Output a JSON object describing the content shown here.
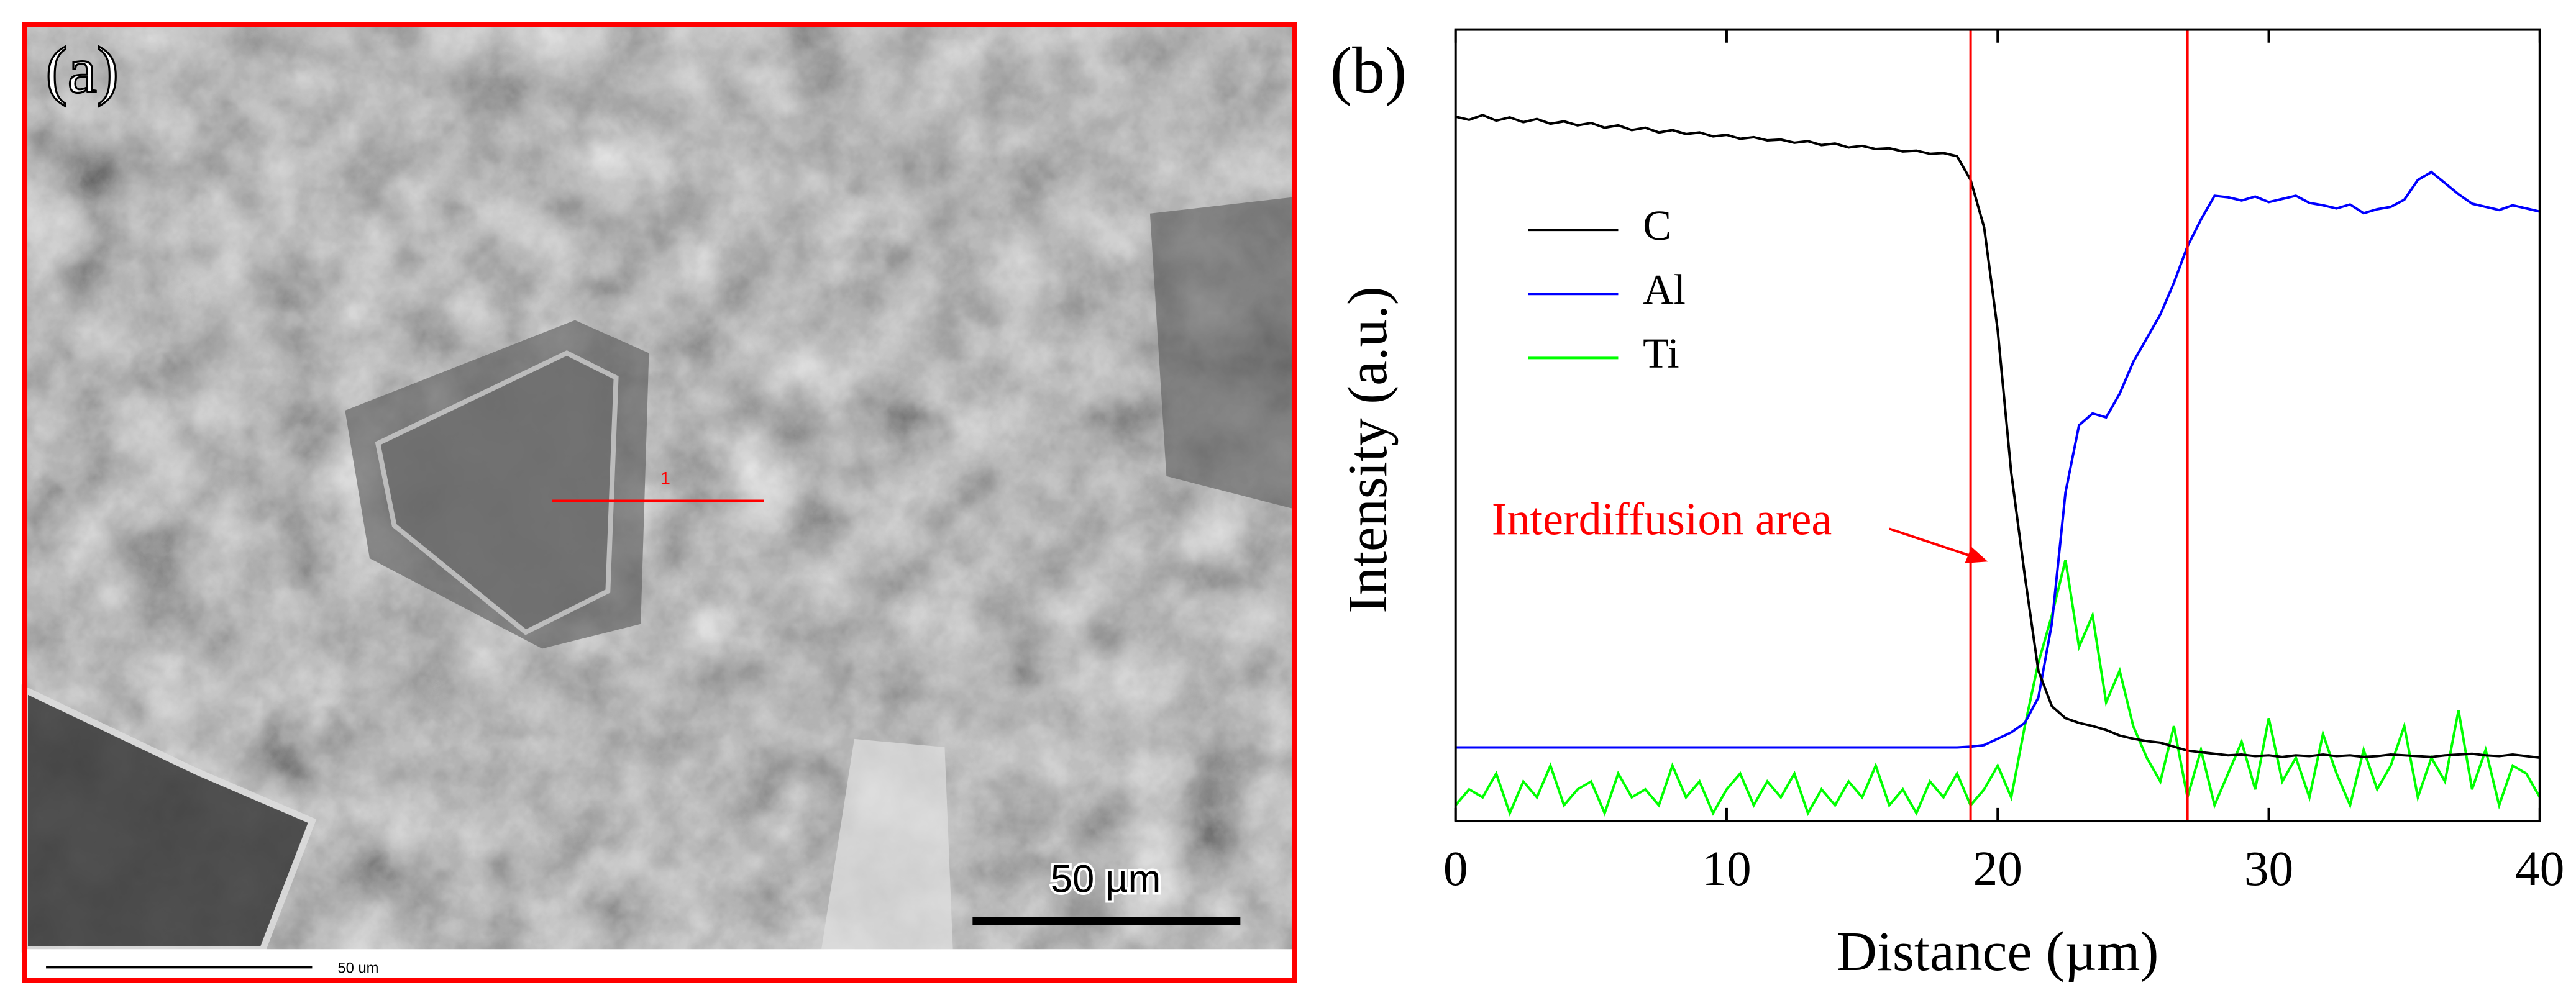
{
  "image_panel": {
    "label": "(a)",
    "scale_bar": "50 µm",
    "footer_scale": "50 um",
    "line_marker": "1"
  },
  "chart_data": {
    "type": "line",
    "panel_label": "(b)",
    "x_label": "Distance (µm)",
    "y_label": "Intensity (a.u.)",
    "annotation": "Interdiffusion area",
    "annotation_color": "#ff0000",
    "vlines": [
      19,
      27
    ],
    "vline_color": "#ff0000",
    "xlim": [
      0,
      40
    ],
    "xticks": [
      0,
      10,
      20,
      30,
      40
    ],
    "ylim": [
      0,
      100
    ],
    "legend": "upper left",
    "x": [
      0,
      0.5,
      1,
      1.5,
      2,
      2.5,
      3,
      3.5,
      4,
      4.5,
      5,
      5.5,
      6,
      6.5,
      7,
      7.5,
      8,
      8.5,
      9,
      9.5,
      10,
      10.5,
      11,
      11.5,
      12,
      12.5,
      13,
      13.5,
      14,
      14.5,
      15,
      15.5,
      16,
      16.5,
      17,
      17.5,
      18,
      18.5,
      19,
      19.5,
      20,
      20.5,
      21,
      21.5,
      22,
      22.5,
      23,
      23.5,
      24,
      24.5,
      25,
      25.5,
      26,
      26.5,
      27,
      27.5,
      28,
      28.5,
      29,
      29.5,
      30,
      30.5,
      31,
      31.5,
      32,
      32.5,
      33,
      33.5,
      34,
      34.5,
      35,
      35.5,
      36,
      36.5,
      37,
      37.5,
      38,
      38.5,
      39,
      39.5,
      40
    ],
    "series": [
      {
        "name": "C",
        "color": "#000000",
        "values": [
          89,
          88.6,
          89.2,
          88.5,
          88.9,
          88.3,
          88.7,
          88.1,
          88.4,
          87.9,
          88.2,
          87.6,
          87.9,
          87.3,
          87.6,
          87,
          87.3,
          86.8,
          87,
          86.5,
          86.7,
          86.2,
          86.4,
          86,
          86.1,
          85.7,
          85.9,
          85.4,
          85.6,
          85.1,
          85.3,
          84.9,
          85,
          84.6,
          84.7,
          84.3,
          84.4,
          84,
          81,
          75,
          62,
          44,
          31,
          19,
          14.5,
          13,
          12.4,
          12,
          11.5,
          10.8,
          10.4,
          10.1,
          9.9,
          9.4,
          8.9,
          8.7,
          8.5,
          8.3,
          8.4,
          8.2,
          8.3,
          8.1,
          8.3,
          8.2,
          8.4,
          8.2,
          8.3,
          8.1,
          8.2,
          8.4,
          8.3,
          8.2,
          8.1,
          8.3,
          8.4,
          8.5,
          8.3,
          8.2,
          8.4,
          8.2,
          8.0
        ]
      },
      {
        "name": "Al",
        "color": "#0000ff",
        "values": [
          9.3,
          9.3,
          9.3,
          9.3,
          9.3,
          9.3,
          9.3,
          9.3,
          9.3,
          9.3,
          9.3,
          9.3,
          9.3,
          9.3,
          9.3,
          9.3,
          9.3,
          9.3,
          9.3,
          9.3,
          9.3,
          9.3,
          9.3,
          9.3,
          9.3,
          9.3,
          9.3,
          9.3,
          9.3,
          9.3,
          9.3,
          9.3,
          9.3,
          9.3,
          9.3,
          9.3,
          9.3,
          9.3,
          9.4,
          9.6,
          10.4,
          11.2,
          12.4,
          15.6,
          25,
          41.5,
          50,
          51.5,
          51,
          54,
          58,
          61,
          64,
          68,
          72.6,
          76,
          79,
          78.8,
          78.4,
          78.9,
          78.2,
          78.6,
          79,
          78.1,
          77.8,
          77.4,
          77.9,
          76.8,
          77.3,
          77.6,
          78.5,
          81,
          82,
          80.6,
          79.2,
          78,
          77.6,
          77.2,
          77.8,
          77.4,
          77.0
        ]
      },
      {
        "name": "Ti",
        "color": "#00ff00",
        "values": [
          2,
          4,
          3,
          6,
          1,
          5,
          3,
          7,
          2,
          4,
          5,
          1,
          6,
          3,
          4,
          2,
          7,
          3,
          5,
          1,
          4,
          6,
          2,
          5,
          3,
          6,
          1,
          4,
          2,
          5,
          3,
          7,
          2,
          4,
          1,
          5,
          3,
          6,
          2,
          4,
          7,
          3,
          12,
          20,
          26,
          33,
          22,
          26,
          15,
          19,
          12,
          8,
          5,
          12,
          3,
          9,
          2,
          6,
          10,
          4,
          13,
          5,
          8,
          3,
          11,
          6,
          2,
          9,
          4,
          7,
          12,
          3,
          8,
          5,
          14,
          4,
          9,
          2,
          7,
          6,
          3
        ]
      }
    ]
  }
}
